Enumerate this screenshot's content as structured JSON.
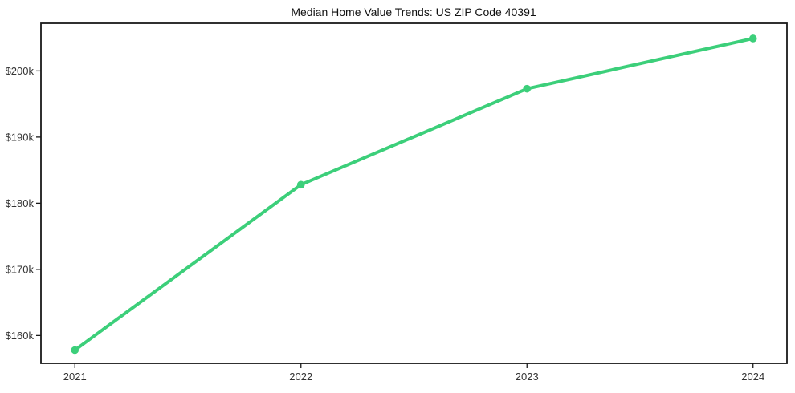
{
  "chart_data": {
    "type": "line",
    "title": "Median Home Value Trends: US ZIP Code 40391",
    "xlabel": "",
    "ylabel": "",
    "x_categories": [
      "2021",
      "2022",
      "2023",
      "2024"
    ],
    "series": [
      {
        "name": "Median home value",
        "values": [
          157800,
          182800,
          197300,
          204900
        ]
      }
    ],
    "y_ticks": [
      160000,
      170000,
      180000,
      190000,
      200000
    ],
    "y_tick_labels": [
      "$160k",
      "$170k",
      "$180k",
      "$190k",
      "$200k"
    ],
    "ylim": [
      155800,
      207200
    ],
    "x_margin_fraction": 0.0455,
    "grid": false,
    "legend_position": "none",
    "line_width": 4,
    "marker_radius": 4.8,
    "line_color": "#3ccf7a",
    "marker_color": "#3ccf7a",
    "axis_color": "#1a1a1a",
    "tick_label_color": "#333333",
    "background_color": "#ffffff"
  }
}
